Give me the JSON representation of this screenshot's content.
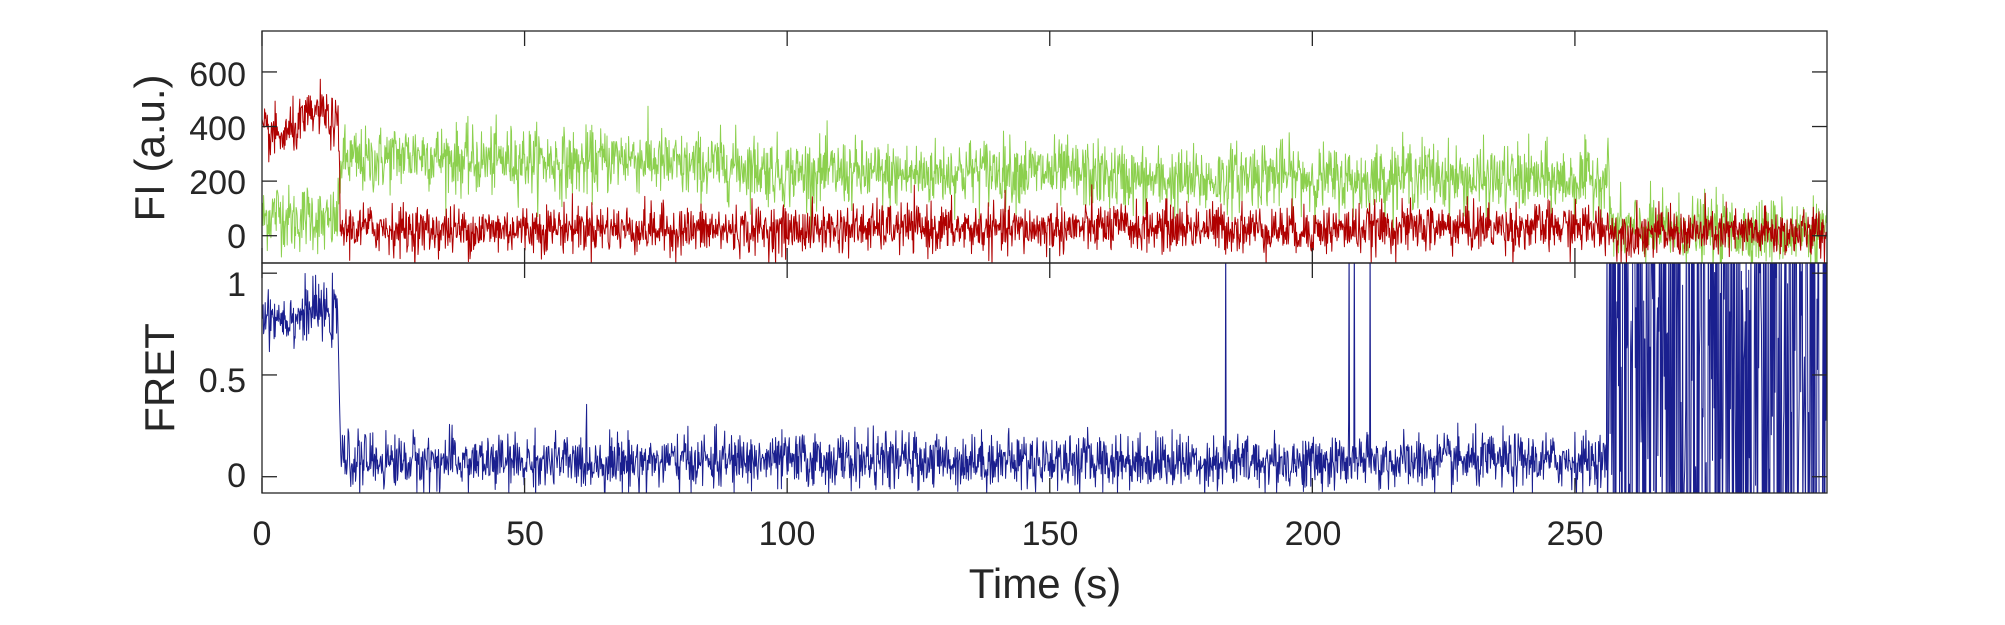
{
  "chart_data": [
    {
      "panel": "top",
      "type": "line",
      "ylabel": "FI (a.u.)",
      "xlim": [
        0,
        298
      ],
      "ylim": [
        -100,
        750
      ],
      "yticks": [
        0,
        200,
        400,
        600
      ],
      "grid": false,
      "legend": "none",
      "series": [
        {
          "color": "#8cd04e",
          "points": [
            [
              0,
              60
            ],
            [
              3,
              90
            ],
            [
              6,
              50
            ],
            [
              9,
              80
            ],
            [
              12,
              40
            ],
            [
              14.5,
              60
            ],
            [
              15,
              280
            ],
            [
              20,
              270
            ],
            [
              25,
              290
            ],
            [
              30,
              300
            ],
            [
              40,
              270
            ],
            [
              50,
              280
            ],
            [
              60,
              260
            ],
            [
              70,
              290
            ],
            [
              80,
              250
            ],
            [
              90,
              260
            ],
            [
              100,
              230
            ],
            [
              110,
              230
            ],
            [
              120,
              220
            ],
            [
              130,
              230
            ],
            [
              140,
              240
            ],
            [
              150,
              230
            ],
            [
              160,
              220
            ],
            [
              170,
              200
            ],
            [
              180,
              200
            ],
            [
              190,
              230
            ],
            [
              200,
              210
            ],
            [
              210,
              200
            ],
            [
              220,
              230
            ],
            [
              230,
              200
            ],
            [
              240,
              210
            ],
            [
              248,
              200
            ],
            [
              255,
              210
            ],
            [
              256.5,
              220
            ],
            [
              257,
              20
            ],
            [
              265,
              20
            ],
            [
              275,
              20
            ],
            [
              285,
              15
            ],
            [
              298,
              15
            ]
          ],
          "noise": 110
        },
        {
          "color": "#b00000",
          "points": [
            [
              0,
              380
            ],
            [
              4,
              360
            ],
            [
              8,
              420
            ],
            [
              11,
              460
            ],
            [
              13,
              420
            ],
            [
              14.5,
              400
            ],
            [
              15,
              20
            ],
            [
              20,
              30
            ],
            [
              30,
              20
            ],
            [
              40,
              20
            ],
            [
              60,
              30
            ],
            [
              80,
              20
            ],
            [
              100,
              20
            ],
            [
              120,
              30
            ],
            [
              140,
              20
            ],
            [
              160,
              30
            ],
            [
              180,
              30
            ],
            [
              200,
              20
            ],
            [
              220,
              30
            ],
            [
              240,
              30
            ],
            [
              256.5,
              30
            ],
            [
              257,
              10
            ],
            [
              270,
              10
            ],
            [
              285,
              10
            ],
            [
              298,
              10
            ]
          ],
          "noise": 80
        }
      ]
    },
    {
      "panel": "bottom",
      "type": "line",
      "xlabel": "Time (s)",
      "ylabel": "FRET",
      "xlim": [
        0,
        298
      ],
      "ylim": [
        -0.08,
        1.05
      ],
      "xticks": [
        0,
        50,
        100,
        150,
        200,
        250
      ],
      "yticks": [
        0,
        0.5,
        1
      ],
      "grid": false,
      "legend": "none",
      "series": [
        {
          "color": "#1a1f8f",
          "points": [
            [
              0,
              0.8
            ],
            [
              6,
              0.78
            ],
            [
              10,
              0.82
            ],
            [
              14.5,
              0.78
            ],
            [
              15,
              0.08
            ],
            [
              50,
              0.07
            ],
            [
              100,
              0.08
            ],
            [
              150,
              0.08
            ],
            [
              200,
              0.07
            ],
            [
              256,
              0.08
            ],
            [
              257,
              0.4
            ],
            [
              298,
              0.4
            ]
          ],
          "noise": 0.12,
          "spikes_to_top": [
            183.5,
            207,
            208,
            211
          ],
          "noisy_region": [
            256,
            298
          ]
        }
      ]
    }
  ]
}
